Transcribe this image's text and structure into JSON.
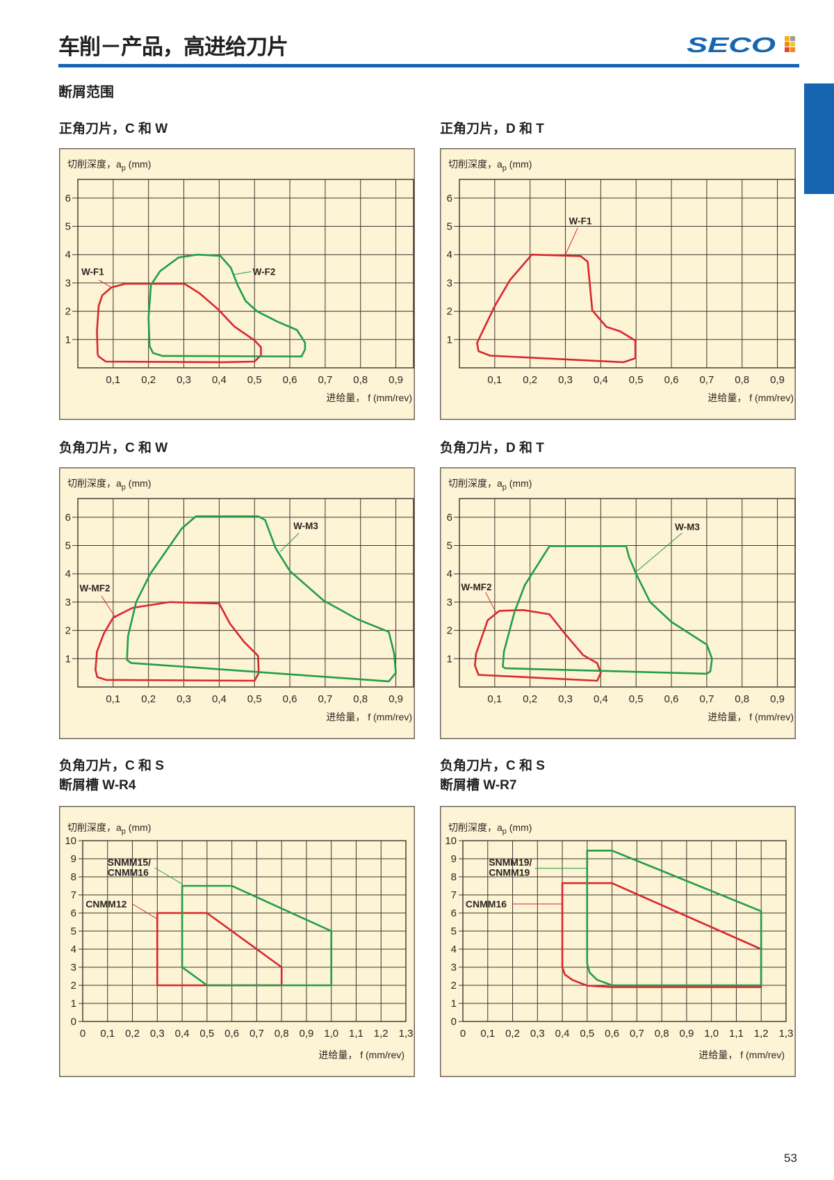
{
  "header": {
    "title": "车削－产品，高进给刀片",
    "logo_text": "SECO"
  },
  "section_title": "断屑范围",
  "page_number": "53",
  "colors": {
    "accent": "#1565b0",
    "red": "#d9262c",
    "green": "#1f9e48",
    "chart_bg": "#fdf3d5",
    "grid": "#3b342b"
  },
  "charts": [
    {
      "heading": [
        "正角刀片，C 和 W"
      ]
    },
    {
      "heading": [
        "正角刀片，D 和 T"
      ]
    },
    {
      "heading": [
        "负角刀片，C 和 W"
      ]
    },
    {
      "heading": [
        "负角刀片，D 和 T"
      ]
    },
    {
      "heading": [
        "负角刀片，C 和 S",
        "断屑槽 W-R4"
      ]
    },
    {
      "heading": [
        "负角刀片，C 和 S",
        "断屑槽 W-R7"
      ]
    }
  ],
  "chart_data": [
    {
      "type": "area",
      "title": "正角刀片，C 和 W",
      "ylabel": {
        "main": "切削深度，a",
        "sub": "p",
        "unit": " (mm)"
      },
      "xlabel": "进给量， f (mm/rev)",
      "xlim": [
        0,
        0.95
      ],
      "ylim": [
        0,
        6.66
      ],
      "grid": true,
      "xticks": [
        0.1,
        0.2,
        0.3,
        0.4,
        0.5,
        0.6,
        0.7,
        0.8,
        0.9
      ],
      "xtick_labels": [
        "0,1",
        "0,2",
        "0,3",
        "0,4",
        "0,5",
        "0,6",
        "0,7",
        "0,8",
        "0,9"
      ],
      "yticks": [
        1,
        2,
        3,
        4,
        5,
        6
      ],
      "ytick_labels": [
        "1",
        "2",
        "3",
        "4",
        "5",
        "6"
      ],
      "series": [
        {
          "name": "W-F1",
          "color": "red",
          "points": [
            [
              0.056,
              0.48
            ],
            [
              0.054,
              1.3
            ],
            [
              0.059,
              2.19
            ],
            [
              0.069,
              2.56
            ],
            [
              0.095,
              2.84
            ],
            [
              0.134,
              2.97
            ],
            [
              0.302,
              2.97
            ],
            [
              0.344,
              2.64
            ],
            [
              0.397,
              2.07
            ],
            [
              0.443,
              1.46
            ],
            [
              0.5,
              0.97
            ],
            [
              0.518,
              0.73
            ],
            [
              0.518,
              0.44
            ],
            [
              0.5,
              0.22
            ],
            [
              0.41,
              0.2
            ],
            [
              0.079,
              0.22
            ],
            [
              0.059,
              0.4
            ]
          ]
        },
        {
          "name": "W-F2",
          "color": "green",
          "points": [
            [
              0.203,
              0.77
            ],
            [
              0.2,
              1.78
            ],
            [
              0.207,
              2.93
            ],
            [
              0.233,
              3.42
            ],
            [
              0.285,
              3.9
            ],
            [
              0.338,
              4.0
            ],
            [
              0.403,
              3.96
            ],
            [
              0.433,
              3.54
            ],
            [
              0.452,
              2.93
            ],
            [
              0.475,
              2.36
            ],
            [
              0.508,
              1.99
            ],
            [
              0.567,
              1.62
            ],
            [
              0.62,
              1.34
            ],
            [
              0.643,
              0.89
            ],
            [
              0.643,
              0.65
            ],
            [
              0.633,
              0.4
            ],
            [
              0.24,
              0.42
            ],
            [
              0.213,
              0.52
            ]
          ]
        }
      ]
    },
    {
      "type": "area",
      "title": "正角刀片，D 和 T",
      "ylabel": {
        "main": "切削深度，a",
        "sub": "p",
        "unit": " (mm)"
      },
      "xlabel": "进给量， f (mm/rev)",
      "xlim": [
        0,
        0.95
      ],
      "ylim": [
        0,
        6.66
      ],
      "grid": true,
      "xticks": [
        0.1,
        0.2,
        0.3,
        0.4,
        0.5,
        0.6,
        0.7,
        0.8,
        0.9
      ],
      "xtick_labels": [
        "0,1",
        "0,2",
        "0,3",
        "0,4",
        "0,5",
        "0,6",
        "0,7",
        "0,8",
        "0,9"
      ],
      "yticks": [
        1,
        2,
        3,
        4,
        5,
        6
      ],
      "ytick_labels": [
        "1",
        "2",
        "3",
        "4",
        "5",
        "6"
      ],
      "series": [
        {
          "name": "W-F1",
          "color": "red",
          "points": [
            [
              0.05,
              0.88
            ],
            [
              0.1,
              2.18
            ],
            [
              0.143,
              3.1
            ],
            [
              0.205,
              4.0
            ],
            [
              0.343,
              3.95
            ],
            [
              0.363,
              3.75
            ],
            [
              0.376,
              2.03
            ],
            [
              0.416,
              1.45
            ],
            [
              0.455,
              1.29
            ],
            [
              0.498,
              0.96
            ],
            [
              0.498,
              0.34
            ],
            [
              0.465,
              0.2
            ],
            [
              0.087,
              0.43
            ],
            [
              0.054,
              0.59
            ]
          ]
        }
      ]
    },
    {
      "type": "area",
      "title": "负角刀片，C 和 W",
      "ylabel": {
        "main": "切削深度，a",
        "sub": "p",
        "unit": " (mm)"
      },
      "xlabel": "进给量， f (mm/rev)",
      "xlim": [
        0,
        0.95
      ],
      "ylim": [
        0,
        6.66
      ],
      "grid": true,
      "xticks": [
        0.1,
        0.2,
        0.3,
        0.4,
        0.5,
        0.6,
        0.7,
        0.8,
        0.9
      ],
      "xtick_labels": [
        "0,1",
        "0,2",
        "0,3",
        "0,4",
        "0,5",
        "0,6",
        "0,7",
        "0,8",
        "0,9"
      ],
      "yticks": [
        1,
        2,
        3,
        4,
        5,
        6
      ],
      "ytick_labels": [
        "1",
        "2",
        "3",
        "4",
        "5",
        "6"
      ],
      "series": [
        {
          "name": "W-MF2",
          "color": "red",
          "points": [
            [
              0.05,
              0.6
            ],
            [
              0.054,
              1.25
            ],
            [
              0.074,
              1.9
            ],
            [
              0.1,
              2.45
            ],
            [
              0.155,
              2.8
            ],
            [
              0.26,
              3.0
            ],
            [
              0.4,
              2.95
            ],
            [
              0.43,
              2.25
            ],
            [
              0.47,
              1.6
            ],
            [
              0.51,
              1.1
            ],
            [
              0.512,
              0.5
            ],
            [
              0.5,
              0.22
            ],
            [
              0.08,
              0.25
            ],
            [
              0.055,
              0.35
            ]
          ]
        },
        {
          "name": "W-M3",
          "color": "green",
          "points": [
            [
              0.139,
              0.96
            ],
            [
              0.142,
              1.8
            ],
            [
              0.165,
              3.0
            ],
            [
              0.205,
              4.0
            ],
            [
              0.294,
              5.6
            ],
            [
              0.334,
              6.03
            ],
            [
              0.511,
              6.03
            ],
            [
              0.53,
              5.9
            ],
            [
              0.56,
              4.9
            ],
            [
              0.6,
              4.1
            ],
            [
              0.695,
              3.06
            ],
            [
              0.79,
              2.4
            ],
            [
              0.88,
              1.95
            ],
            [
              0.895,
              1.2
            ],
            [
              0.9,
              0.5
            ],
            [
              0.88,
              0.2
            ],
            [
              0.15,
              0.85
            ]
          ]
        }
      ]
    },
    {
      "type": "area",
      "title": "负角刀片，D 和 T",
      "ylabel": {
        "main": "切削深度，a",
        "sub": "p",
        "unit": " (mm)"
      },
      "xlabel": "进给量， f (mm/rev)",
      "xlim": [
        0,
        0.95
      ],
      "ylim": [
        0,
        6.66
      ],
      "grid": true,
      "xticks": [
        0.1,
        0.2,
        0.3,
        0.4,
        0.5,
        0.6,
        0.7,
        0.8,
        0.9
      ],
      "xtick_labels": [
        "0,1",
        "0,2",
        "0,3",
        "0,4",
        "0,5",
        "0,6",
        "0,7",
        "0,8",
        "0,9"
      ],
      "yticks": [
        1,
        2,
        3,
        4,
        5,
        6
      ],
      "ytick_labels": [
        "1",
        "2",
        "3",
        "4",
        "5",
        "6"
      ],
      "series": [
        {
          "name": "W-MF2",
          "color": "red",
          "points": [
            [
              0.044,
              0.76
            ],
            [
              0.047,
              1.17
            ],
            [
              0.08,
              2.36
            ],
            [
              0.113,
              2.69
            ],
            [
              0.18,
              2.72
            ],
            [
              0.255,
              2.57
            ],
            [
              0.297,
              1.91
            ],
            [
              0.35,
              1.13
            ],
            [
              0.39,
              0.84
            ],
            [
              0.4,
              0.5
            ],
            [
              0.39,
              0.22
            ],
            [
              0.054,
              0.43
            ]
          ]
        },
        {
          "name": "W-M3",
          "color": "green",
          "points": [
            [
              0.123,
              0.72
            ],
            [
              0.126,
              1.25
            ],
            [
              0.156,
              2.65
            ],
            [
              0.185,
              3.6
            ],
            [
              0.255,
              4.98
            ],
            [
              0.472,
              4.98
            ],
            [
              0.48,
              4.6
            ],
            [
              0.5,
              4.0
            ],
            [
              0.54,
              3.0
            ],
            [
              0.6,
              2.3
            ],
            [
              0.7,
              1.5
            ],
            [
              0.715,
              1.0
            ],
            [
              0.71,
              0.55
            ],
            [
              0.7,
              0.47
            ],
            [
              0.13,
              0.66
            ]
          ]
        }
      ]
    },
    {
      "type": "area",
      "title": "负角刀片，C 和 S 断屑槽 W-R4",
      "ylabel": {
        "main": "切削深度，a",
        "sub": "p",
        "unit": " (mm)"
      },
      "xlabel": "进给量， f (mm/rev)",
      "xlim": [
        0,
        1.3
      ],
      "ylim": [
        0,
        10
      ],
      "grid": true,
      "xticks": [
        0,
        0.1,
        0.2,
        0.3,
        0.4,
        0.5,
        0.6,
        0.7,
        0.8,
        0.9,
        1.0,
        1.1,
        1.2,
        1.3
      ],
      "xtick_labels": [
        "0",
        "0,1",
        "0,2",
        "0,3",
        "0,4",
        "0,5",
        "0,6",
        "0,7",
        "0,8",
        "0,9",
        "1,0",
        "1,1",
        "1,2",
        "1,3"
      ],
      "yticks": [
        0,
        1,
        2,
        3,
        4,
        5,
        6,
        7,
        8,
        9,
        10
      ],
      "ytick_labels": [
        "0",
        "1",
        "2",
        "3",
        "4",
        "5",
        "6",
        "7",
        "8",
        "9",
        "10"
      ],
      "series": [
        {
          "name": "CNMM12",
          "color": "red",
          "points": [
            [
              0.3,
              2
            ],
            [
              0.3,
              6
            ],
            [
              0.5,
              6
            ],
            [
              0.8,
              3
            ],
            [
              0.8,
              2
            ]
          ]
        },
        {
          "name": "SNMM15/ CNMM16",
          "color": "green",
          "points": [
            [
              0.4,
              3
            ],
            [
              0.4,
              7.5
            ],
            [
              0.6,
              7.5
            ],
            [
              1.0,
              5
            ],
            [
              1.0,
              2
            ],
            [
              0.5,
              2
            ]
          ]
        }
      ]
    },
    {
      "type": "area",
      "title": "负角刀片，C 和 S 断屑槽 W-R7",
      "ylabel": {
        "main": "切削深度，a",
        "sub": "p",
        "unit": " (mm)"
      },
      "xlabel": "进给量， f (mm/rev)",
      "xlim": [
        0,
        1.3
      ],
      "ylim": [
        0,
        10
      ],
      "grid": true,
      "xticks": [
        0,
        0.1,
        0.2,
        0.3,
        0.4,
        0.5,
        0.6,
        0.7,
        0.8,
        0.9,
        1.0,
        1.1,
        1.2,
        1.3
      ],
      "xtick_labels": [
        "0",
        "0,1",
        "0,2",
        "0,3",
        "0,4",
        "0,5",
        "0,6",
        "0,7",
        "0,8",
        "0,9",
        "1,0",
        "1,1",
        "1,2",
        "1,3"
      ],
      "yticks": [
        0,
        1,
        2,
        3,
        4,
        5,
        6,
        7,
        8,
        9,
        10
      ],
      "ytick_labels": [
        "0",
        "1",
        "2",
        "3",
        "4",
        "5",
        "6",
        "7",
        "8",
        "9",
        "10"
      ],
      "series": [
        {
          "name": "CNMM16",
          "color": "red",
          "points": [
            [
              0.4,
              7.65
            ],
            [
              0.6,
              7.65
            ],
            [
              1.2,
              4.0
            ],
            [
              1.2,
              1.9
            ],
            [
              0.6,
              1.9
            ],
            [
              0.5,
              1.98
            ],
            [
              0.44,
              2.3
            ],
            [
              0.41,
              2.6
            ],
            [
              0.4,
              3.0
            ]
          ]
        },
        {
          "name": "SNMM19/ CNMM19",
          "color": "green",
          "points": [
            [
              0.5,
              9.45
            ],
            [
              0.6,
              9.45
            ],
            [
              1.2,
              6.1
            ],
            [
              1.2,
              2.0
            ],
            [
              0.6,
              2.0
            ],
            [
              0.54,
              2.3
            ],
            [
              0.51,
              2.7
            ],
            [
              0.5,
              3.2
            ]
          ]
        }
      ]
    }
  ]
}
